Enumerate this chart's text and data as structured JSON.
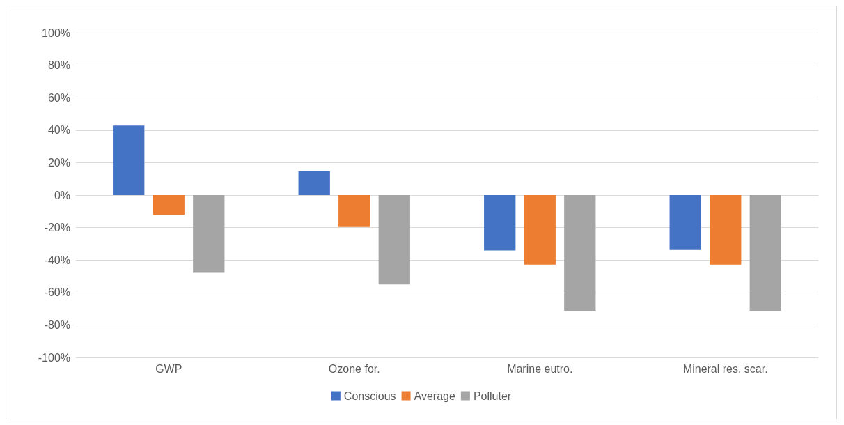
{
  "chart_data": {
    "type": "bar",
    "categories": [
      "GWP",
      "Ozone for.",
      "Marine eutro.",
      "Mineral res. scar."
    ],
    "series": [
      {
        "name": "Conscious",
        "color": "#4472c4",
        "values": [
          42.8,
          14.6,
          -34.1,
          -33.8
        ]
      },
      {
        "name": "Average",
        "color": "#ed7d31",
        "values": [
          -12,
          -19.6,
          -42.8,
          -42.8
        ]
      },
      {
        "name": "Polluter",
        "color": "#a5a5a5",
        "values": [
          -47.9,
          -55,
          -71.2,
          -71.2
        ]
      }
    ],
    "ylim": [
      -100,
      100
    ],
    "yticks": [
      {
        "value": -100,
        "label": "-100%"
      },
      {
        "value": -80,
        "label": "-80%"
      },
      {
        "value": -60,
        "label": "-60%"
      },
      {
        "value": -40,
        "label": "-40%"
      },
      {
        "value": -20,
        "label": "-20%"
      },
      {
        "value": 0,
        "label": "0%"
      },
      {
        "value": 20,
        "label": "20%"
      },
      {
        "value": 40,
        "label": "40%"
      },
      {
        "value": 60,
        "label": "60%"
      },
      {
        "value": 80,
        "label": "80%"
      },
      {
        "value": 100,
        "label": "100%"
      }
    ],
    "grid": true,
    "legend": "bottom"
  }
}
